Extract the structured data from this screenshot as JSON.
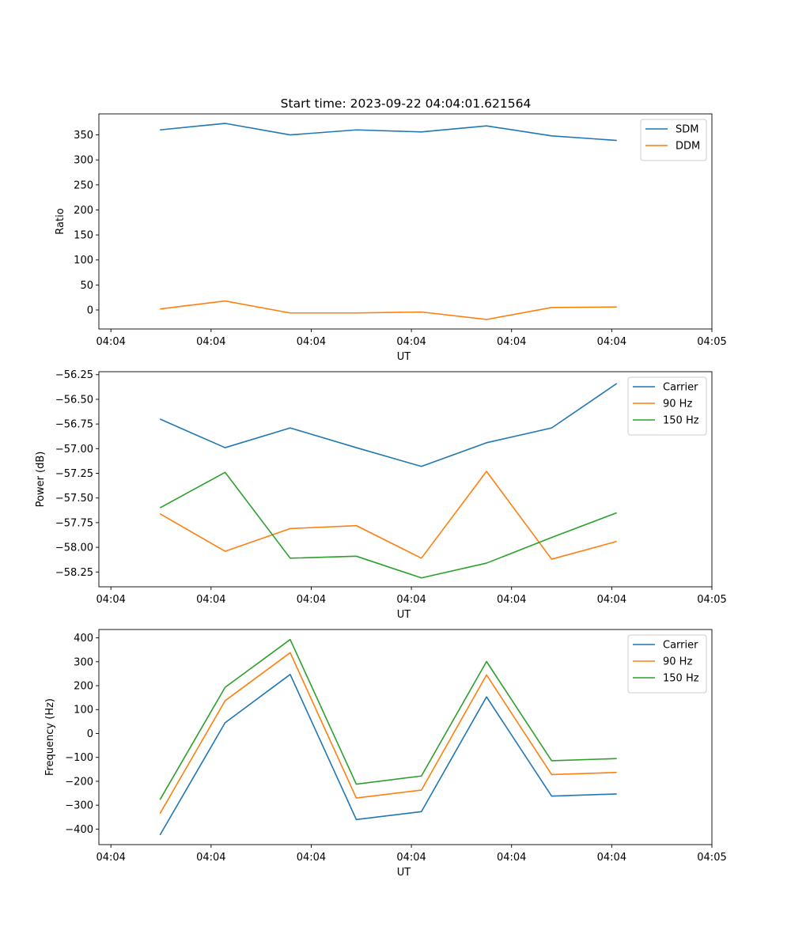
{
  "figure_title": "Start time: 2023-09-22 04:04:01.621564",
  "chart_data": [
    {
      "type": "line",
      "title": "Start time: 2023-09-22 04:04:01.621564",
      "xlabel": "UT",
      "ylabel": "Ratio",
      "x": [
        0.49,
        1.14,
        1.79,
        2.45,
        3.1,
        3.75,
        4.4,
        5.05
      ],
      "xlim": [
        -0.12,
        6.0
      ],
      "x_ticks": [
        0,
        1,
        2,
        3,
        4,
        5,
        6
      ],
      "x_tick_labels": [
        "04:04",
        "04:04",
        "04:04",
        "04:04",
        "04:04",
        "04:04",
        "04:05"
      ],
      "ylim": [
        -38,
        392
      ],
      "y_ticks": [
        0,
        50,
        100,
        150,
        200,
        250,
        300,
        350
      ],
      "y_tick_labels": [
        "0",
        "50",
        "100",
        "150",
        "200",
        "250",
        "300",
        "350"
      ],
      "legend_position": "top-right",
      "series": [
        {
          "name": "SDM",
          "color": "#1f77b4",
          "values": [
            360,
            373,
            350,
            360,
            356,
            368,
            348,
            339
          ]
        },
        {
          "name": "DDM",
          "color": "#ff7f0e",
          "values": [
            2,
            18,
            -6,
            -6,
            -4,
            -19,
            5,
            6
          ]
        }
      ]
    },
    {
      "type": "line",
      "title": "",
      "xlabel": "UT",
      "ylabel": "Power (dB)",
      "x": [
        0.49,
        1.14,
        1.79,
        2.45,
        3.1,
        3.75,
        4.4,
        5.05
      ],
      "xlim": [
        -0.12,
        6.0
      ],
      "x_ticks": [
        0,
        1,
        2,
        3,
        4,
        5,
        6
      ],
      "x_tick_labels": [
        "04:04",
        "04:04",
        "04:04",
        "04:04",
        "04:04",
        "04:04",
        "04:05"
      ],
      "ylim": [
        -58.4,
        -56.22
      ],
      "y_ticks": [
        -58.25,
        -58.0,
        -57.75,
        -57.5,
        -57.25,
        -57.0,
        -56.75,
        -56.5,
        -56.25
      ],
      "y_tick_labels": [
        "−58.25",
        "−58.00",
        "−57.75",
        "−57.50",
        "−57.25",
        "−57.00",
        "−56.75",
        "−56.50",
        "−56.25"
      ],
      "legend_position": "top-right",
      "series": [
        {
          "name": "Carrier",
          "color": "#1f77b4",
          "values": [
            -56.7,
            -56.99,
            -56.79,
            -56.99,
            -57.18,
            -56.94,
            -56.79,
            -56.34
          ]
        },
        {
          "name": "90 Hz",
          "color": "#ff7f0e",
          "values": [
            -57.66,
            -58.04,
            -57.81,
            -57.78,
            -58.11,
            -57.23,
            -58.12,
            -57.94
          ]
        },
        {
          "name": "150 Hz",
          "color": "#2ca02c",
          "values": [
            -57.6,
            -57.24,
            -58.11,
            -58.09,
            -58.31,
            -58.16,
            -57.9,
            -57.65
          ]
        }
      ]
    },
    {
      "type": "line",
      "title": "",
      "xlabel": "UT",
      "ylabel": "Frequency (Hz)",
      "x": [
        0.49,
        1.14,
        1.79,
        2.45,
        3.1,
        3.75,
        4.4,
        5.05
      ],
      "xlim": [
        -0.12,
        6.0
      ],
      "x_ticks": [
        0,
        1,
        2,
        3,
        4,
        5,
        6
      ],
      "x_tick_labels": [
        "04:04",
        "04:04",
        "04:04",
        "04:04",
        "04:04",
        "04:04",
        "04:05"
      ],
      "ylim": [
        -465,
        435
      ],
      "y_ticks": [
        -400,
        -300,
        -200,
        -100,
        0,
        100,
        200,
        300,
        400
      ],
      "y_tick_labels": [
        "−400",
        "−300",
        "−200",
        "−100",
        "0",
        "100",
        "200",
        "300",
        "400"
      ],
      "legend_position": "top-right",
      "series": [
        {
          "name": "Carrier",
          "color": "#1f77b4",
          "values": [
            -425,
            45,
            247,
            -360,
            -327,
            153,
            -262,
            -253
          ]
        },
        {
          "name": "90 Hz",
          "color": "#ff7f0e",
          "values": [
            -335,
            137,
            338,
            -270,
            -237,
            245,
            -172,
            -163
          ]
        },
        {
          "name": "150 Hz",
          "color": "#2ca02c",
          "values": [
            -277,
            193,
            393,
            -212,
            -178,
            301,
            -114,
            -105
          ]
        }
      ]
    }
  ]
}
